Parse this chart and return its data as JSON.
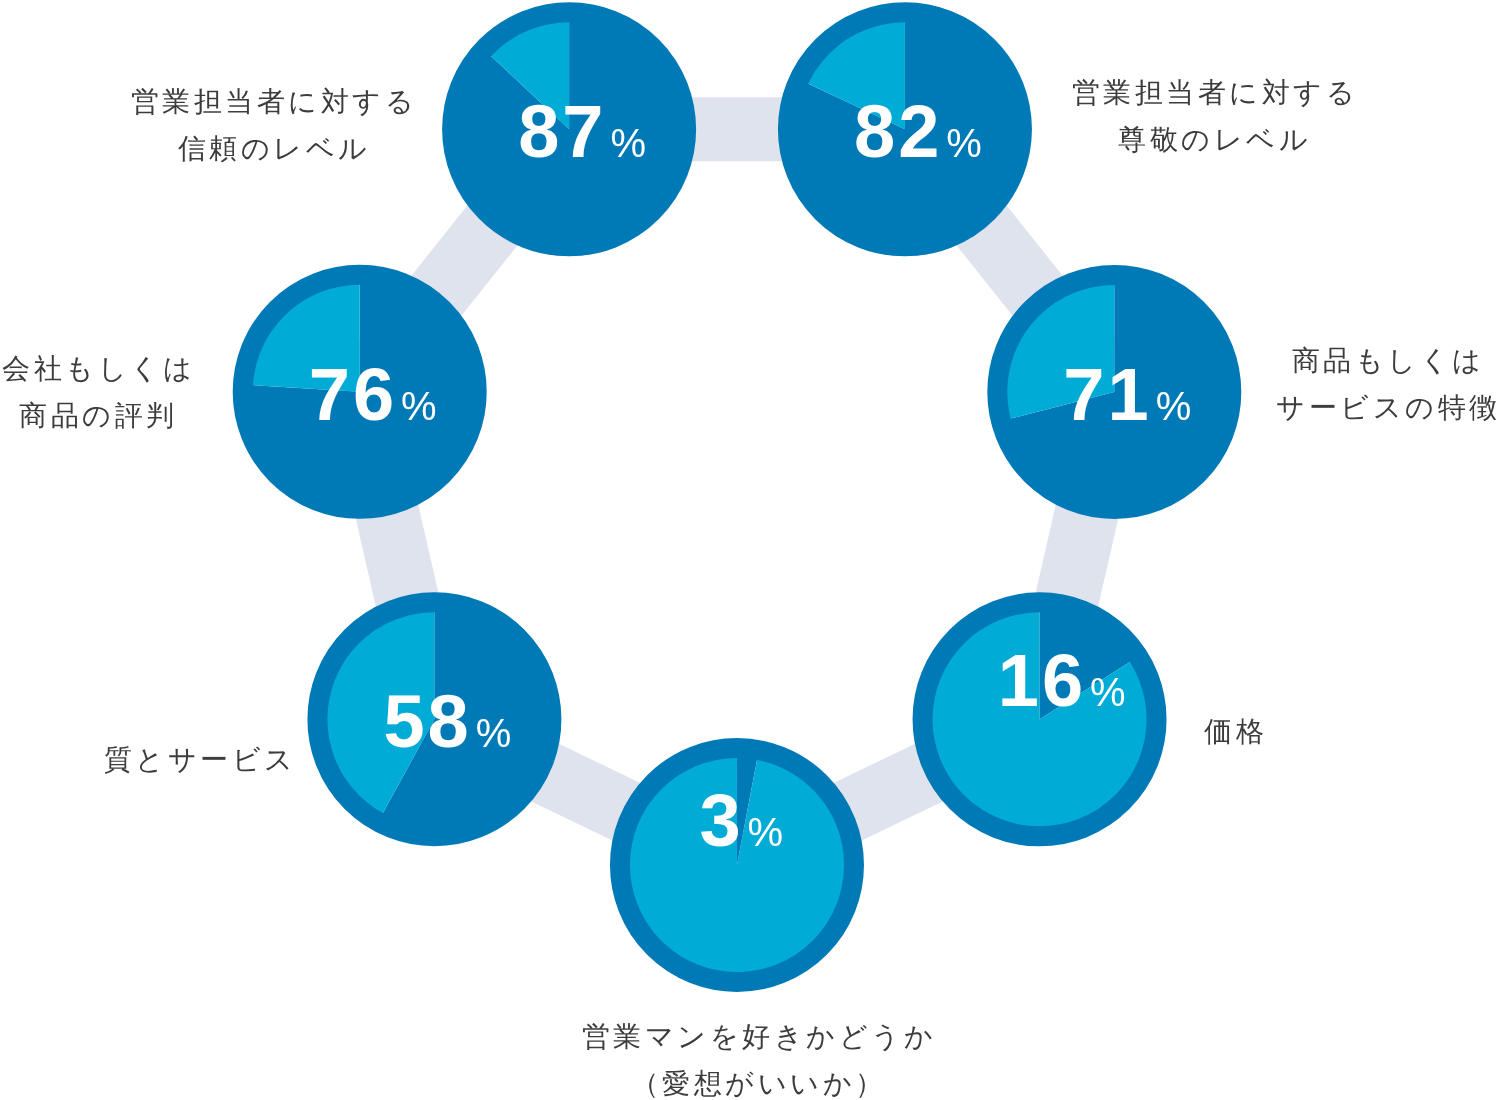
{
  "chart_data": [
    {
      "type": "pie",
      "title": "営業担当者に対する信頼のレベル",
      "categories": [
        null,
        null
      ],
      "values": [
        87,
        13
      ],
      "colors": [
        "#0079b7",
        "#00acd6"
      ],
      "value_labels": [
        "87%",
        null
      ]
    },
    {
      "type": "pie",
      "title": "営業担当者に対する尊敬のレベル",
      "categories": [
        null,
        null
      ],
      "values": [
        82,
        18
      ],
      "colors": [
        "#0079b7",
        "#00acd6"
      ],
      "value_labels": [
        "82%",
        null
      ]
    },
    {
      "type": "pie",
      "title": "商品もしくはサービスの特徴",
      "categories": [
        null,
        null
      ],
      "values": [
        71,
        29
      ],
      "colors": [
        "#0079b7",
        "#00acd6"
      ],
      "value_labels": [
        "71%",
        null
      ]
    },
    {
      "type": "pie",
      "title": "価格",
      "categories": [
        null,
        null
      ],
      "values": [
        16,
        84
      ],
      "colors": [
        "#0079b7",
        "#00acd6"
      ],
      "value_labels": [
        "16%",
        null
      ]
    },
    {
      "type": "pie",
      "title": "営業マンを好きかどうか（愛想がいいか）",
      "categories": [
        null,
        null
      ],
      "values": [
        3,
        97
      ],
      "colors": [
        "#0079b7",
        "#00acd6"
      ],
      "value_labels": [
        "3%",
        null
      ]
    },
    {
      "type": "pie",
      "title": "質とサービス",
      "categories": [
        null,
        null
      ],
      "values": [
        58,
        42
      ],
      "colors": [
        "#0079b7",
        "#00acd6"
      ],
      "value_labels": [
        "58%",
        null
      ]
    },
    {
      "type": "pie",
      "title": "会社もしくは商品の評判",
      "categories": [
        null,
        null
      ],
      "values": [
        76,
        24
      ],
      "colors": [
        "#0079b7",
        "#00acd6"
      ],
      "value_labels": [
        "76%",
        null
      ]
    }
  ]
}
